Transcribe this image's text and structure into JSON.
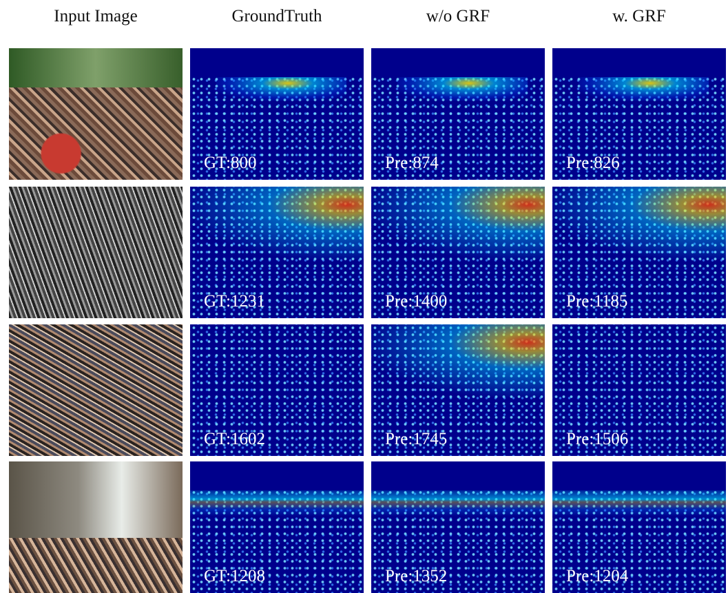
{
  "header": {
    "columns": [
      "Input Image",
      "GroundTruth",
      "w/o GRF",
      "w. GRF"
    ]
  },
  "rows": [
    {
      "labels": [
        "GT:800",
        "Pre:874",
        "Pre:826"
      ]
    },
    {
      "labels": [
        "GT:1231",
        "Pre:1400",
        "Pre:1185"
      ]
    },
    {
      "labels": [
        "GT:1602",
        "Pre:1745",
        "Pre:1506"
      ]
    },
    {
      "labels": [
        "GT:1208",
        "Pre:1352",
        "Pre:1204"
      ]
    }
  ]
}
